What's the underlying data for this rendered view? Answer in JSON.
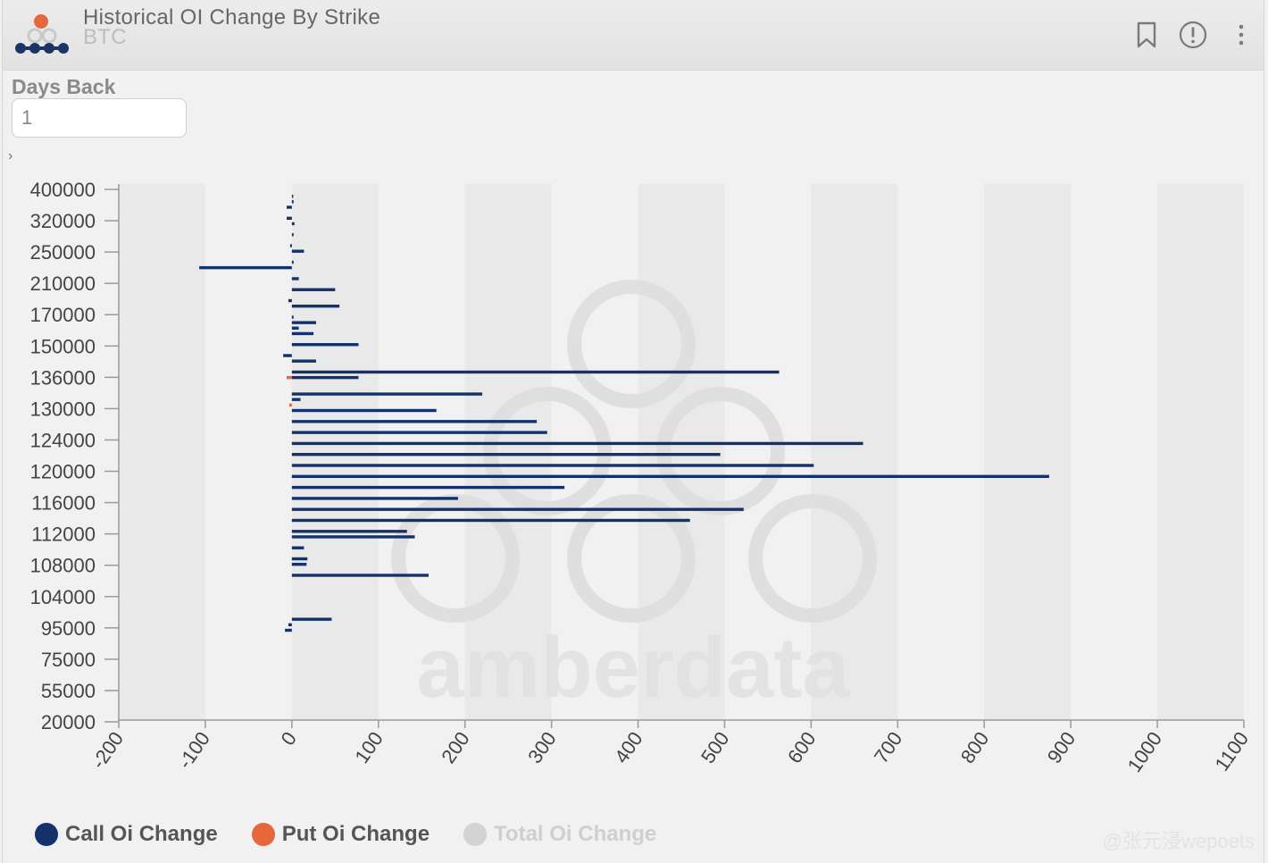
{
  "header": {
    "title": "Historical OI Change By Strike",
    "subtitle": "BTC"
  },
  "controls": {
    "days_back_label": "Days Back",
    "days_back_value": "1"
  },
  "watermark": {
    "text": "amberdata",
    "credit": "@张元浸wepoets"
  },
  "colors": {
    "call": "#13326b",
    "put": "#e8663b",
    "total": "#d3d3d3",
    "logo_orange": "#e8663b",
    "logo_navy": "#1c3566"
  },
  "icons": [
    "bookmark-icon",
    "info-icon",
    "more-vertical-icon",
    "chevron-right-icon"
  ],
  "chart_data": {
    "type": "bar",
    "orientation": "horizontal",
    "xlim": [
      -200,
      1100
    ],
    "x_ticks": [
      -200,
      -100,
      0,
      100,
      200,
      300,
      400,
      500,
      600,
      700,
      800,
      900,
      1000,
      1100
    ],
    "y_tick_labels": [
      "400000",
      "320000",
      "250000",
      "210000",
      "170000",
      "150000",
      "136000",
      "130000",
      "124000",
      "120000",
      "116000",
      "112000",
      "108000",
      "104000",
      "95000",
      "75000",
      "55000",
      "20000"
    ],
    "legend_position": "bottom-left",
    "series": [
      {
        "name": "Call Oi Change",
        "color": "#13326b",
        "visible": true,
        "values": [
          1,
          2,
          -6,
          0,
          -6,
          3,
          0,
          2,
          0,
          -2,
          14,
          0,
          2,
          -107,
          0,
          8,
          0,
          50,
          0,
          -4,
          55,
          0,
          2,
          28,
          8,
          25,
          0,
          77,
          0,
          -10,
          28,
          0,
          563,
          77,
          0,
          0,
          220,
          10,
          0,
          167,
          0,
          283,
          0,
          295,
          0,
          660,
          0,
          495,
          0,
          603,
          0,
          875,
          0,
          315,
          0,
          192,
          0,
          522,
          0,
          460,
          0,
          133,
          142,
          0,
          14,
          0,
          18,
          17,
          0,
          158,
          0,
          0,
          0,
          0,
          0,
          0,
          0,
          46,
          -4,
          -8,
          0,
          0,
          0,
          0,
          0,
          0,
          0,
          0,
          0,
          0,
          0,
          0,
          0,
          0,
          0
        ]
      },
      {
        "name": "Put Oi Change",
        "color": "#e8663b",
        "visible": true,
        "values": [
          0,
          0,
          0,
          0,
          0,
          0,
          0,
          0,
          0,
          0,
          0,
          0,
          0,
          0,
          0,
          0,
          0,
          0,
          0,
          0,
          0,
          0,
          0,
          0,
          0,
          0,
          0,
          0,
          0,
          0,
          0,
          0,
          0,
          -6,
          0,
          0,
          0,
          0,
          -3,
          0,
          0,
          0,
          0,
          0,
          0,
          0,
          0,
          0,
          0,
          0,
          0,
          0,
          0,
          0,
          0,
          0,
          0,
          0,
          0,
          0,
          0,
          0,
          0,
          0,
          0,
          0,
          0,
          0,
          0,
          0,
          0,
          0,
          0,
          0,
          0,
          0,
          0,
          0,
          0,
          0,
          0,
          0,
          0,
          0,
          0,
          0,
          0,
          0,
          0,
          0,
          0,
          0,
          0,
          0,
          0
        ]
      },
      {
        "name": "Total Oi Change",
        "color": "#d3d3d3",
        "visible": false,
        "values": []
      }
    ]
  }
}
